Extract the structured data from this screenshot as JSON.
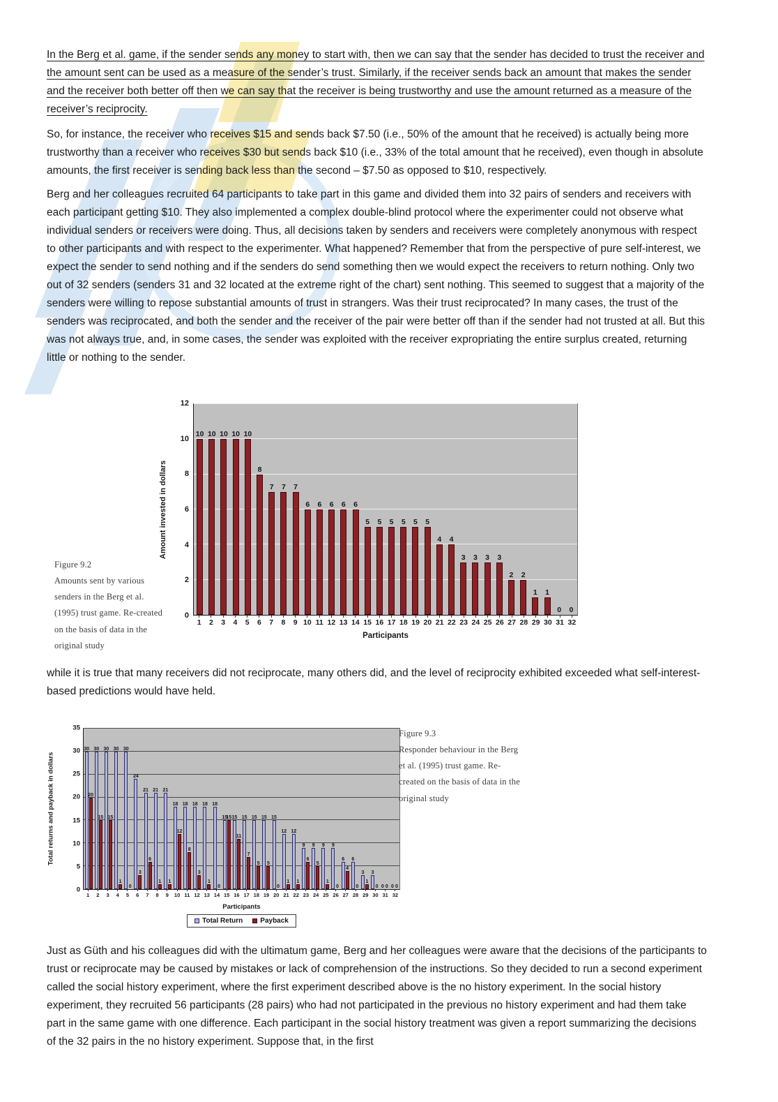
{
  "document": {
    "paragraphs": {
      "p1": "In the Berg et al. game, if the sender sends any money to start with, then we can say that the sender has decided to trust the receiver and the amount sent can be used as a measure of the sender’s trust. Similarly, if the receiver sends back an amount that makes the sender and the receiver both better off then we can say that the receiver is being trustworthy and use the amount returned as a measure of the receiver’s reciprocity.",
      "p2": "So, for instance, the receiver who receives $15 and sends back $7.50 (i.e., 50% of the amount that he received) is actually being more trustworthy than a receiver who receives $30 but sends back $10 (i.e., 33% of the total amount that he received), even though in absolute amounts, the first receiver is sending back less than the second – $7.50 as opposed to $10, respectively.",
      "p3": "Berg and her colleagues recruited 64 participants to take part in this game and divided them into 32 pairs of senders and receivers with each participant getting $10. They also implemented a complex double-blind protocol where the experimenter could not observe what individual senders or receivers were doing. Thus, all decisions taken by senders and receivers were completely anonymous with respect to other participants and with respect to the experimenter. What happened? Remember that from the perspective of pure self-interest, we expect the sender to send nothing and if the senders do send something then we would expect the receivers to return nothing. Only two out of 32 senders (senders 31 and 32 located at the extreme right of the chart) sent nothing. This seemed to suggest that a majority of the senders were willing to repose substantial amounts of trust in strangers. Was their trust reciprocated? In many cases, the trust of the senders was reciprocated, and both the sender and the receiver of the pair were better off than if the sender had not trusted at all. But this was not always true, and, in some cases, the sender was exploited with the receiver expropriating the entire surplus created, returning little or nothing to the sender.",
      "p4": "while it is true that many receivers did not reciprocate, many others did, and the level of reciprocity exhibited exceeded what self-interest-based predictions would have held.",
      "p5": "Just as Güth and his colleagues did with the ultimatum game, Berg and her colleagues were aware that the decisions of the participants to trust or reciprocate may be caused by mistakes or lack of comprehension of the instructions. So they decided to run a second experiment called the social history experiment, where the first experiment described above is the no history experiment. In the social history experiment, they recruited 56 participants (28 pairs) who had not participated in the previous no history experiment and had them take part in the same game with one difference. Each participant in the social history treatment was given a report summarizing the decisions of the 32 pairs in the no history experiment. Suppose that, in the first"
    }
  },
  "figures": {
    "fig92": {
      "label": "Figure 9.2",
      "caption": "Amounts sent by various senders in the Berg et al. (1995) trust game. Re-created on the basis of data in the original study"
    },
    "fig93": {
      "label": "Figure 9.3",
      "caption": "Responder behaviour in the Berg et al. (1995) trust game. Re-created on the basis of data in the original study"
    }
  },
  "chart_data": [
    {
      "type": "bar",
      "categories": [
        1,
        2,
        3,
        4,
        5,
        6,
        7,
        8,
        9,
        10,
        11,
        12,
        13,
        14,
        15,
        16,
        17,
        18,
        19,
        20,
        21,
        22,
        23,
        24,
        25,
        26,
        27,
        28,
        29,
        30,
        31,
        32
      ],
      "values": [
        10,
        10,
        10,
        10,
        10,
        8,
        7,
        7,
        7,
        6,
        6,
        6,
        6,
        6,
        5,
        5,
        5,
        5,
        5,
        5,
        4,
        4,
        3,
        3,
        3,
        3,
        2,
        2,
        1,
        1,
        0,
        0
      ],
      "title": "",
      "xlabel": "Participants",
      "ylabel": "Amount invested in dollars",
      "ylim": [
        0,
        12
      ],
      "yticks": [
        0,
        2,
        4,
        6,
        8,
        10,
        12
      ],
      "grid": "on",
      "grid_color": "#ededed",
      "plot_bg": "#c0c0c0",
      "bar_color": "#8c2125",
      "bar_border": "#41070b",
      "legend_position": "none"
    },
    {
      "type": "bar",
      "categories": [
        1,
        2,
        3,
        4,
        5,
        6,
        7,
        8,
        9,
        10,
        11,
        12,
        13,
        14,
        15,
        16,
        17,
        18,
        19,
        20,
        21,
        22,
        23,
        24,
        25,
        26,
        27,
        28,
        29,
        30,
        31,
        32
      ],
      "series": [
        {
          "name": "Total Return",
          "color": "#b3b6d9",
          "border": "#2b2b66",
          "values": [
            30,
            30,
            30,
            30,
            30,
            24,
            21,
            21,
            21,
            18,
            18,
            18,
            18,
            18,
            15,
            15,
            15,
            15,
            15,
            15,
            12,
            12,
            9,
            9,
            9,
            9,
            6,
            6,
            3,
            3,
            0,
            0
          ]
        },
        {
          "name": "Payback",
          "color": "#8c2125",
          "border": "#41070b",
          "values": [
            20,
            15,
            15,
            1,
            0,
            3,
            6,
            1,
            1,
            12,
            8,
            3,
            1,
            0,
            15,
            11,
            7,
            5,
            5,
            0,
            1,
            1,
            6,
            5,
            1,
            0,
            4,
            0,
            1,
            0,
            0,
            0
          ]
        }
      ],
      "title": "",
      "xlabel": "Participants",
      "ylabel": "Total returns and payback in dollars",
      "ylim": [
        0,
        35
      ],
      "yticks": [
        0,
        5,
        10,
        15,
        20,
        25,
        30,
        35
      ],
      "grid": "on",
      "grid_color": "#4a4a4a",
      "plot_bg": "#c0c0c0",
      "legend_position": "bottom"
    }
  ]
}
